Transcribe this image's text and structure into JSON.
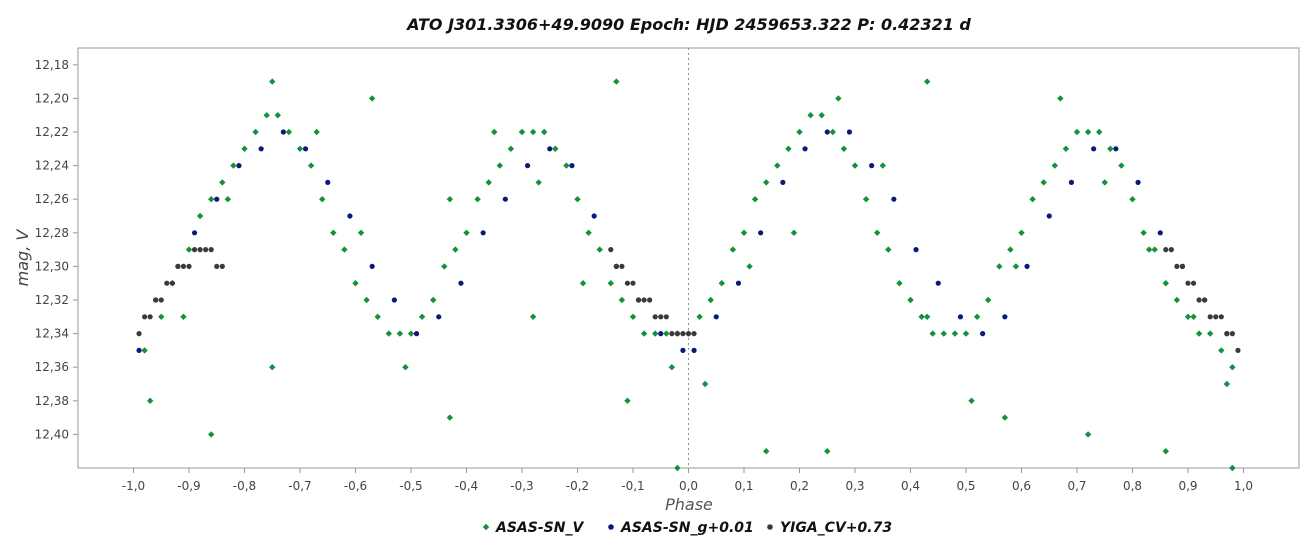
{
  "chart_data": {
    "type": "scatter",
    "title": "ATO J301.3306+49.9090   Epoch: HJD 2459653.322   P: 0.42321 d",
    "xlabel": "Phase",
    "ylabel": "mag, V",
    "xlim": [
      -1.1,
      1.1
    ],
    "ylim": [
      12.17,
      12.42
    ],
    "y_inverted": true,
    "reference_line_x": 0.0,
    "x_ticks": [
      "-1,0",
      "-0,9",
      "-0,8",
      "-0,7",
      "-0,6",
      "-0,5",
      "-0,4",
      "-0,3",
      "-0,2",
      "-0,1",
      "0,0",
      "0,1",
      "0,2",
      "0,3",
      "0,4",
      "0,5",
      "0,6",
      "0,7",
      "0,8",
      "0,9",
      "1,0"
    ],
    "x_tick_values": [
      -1.0,
      -0.9,
      -0.8,
      -0.7,
      -0.6,
      -0.5,
      -0.4,
      -0.3,
      -0.2,
      -0.1,
      0.0,
      0.1,
      0.2,
      0.3,
      0.4,
      0.5,
      0.6,
      0.7,
      0.8,
      0.9,
      1.0
    ],
    "y_ticks": [
      "12,18",
      "12,20",
      "12,22",
      "12,24",
      "12,26",
      "12,28",
      "12,30",
      "12,32",
      "12,34",
      "12,36",
      "12,38",
      "12,40"
    ],
    "y_tick_values": [
      12.18,
      12.2,
      12.22,
      12.24,
      12.26,
      12.28,
      12.3,
      12.32,
      12.34,
      12.36,
      12.38,
      12.4
    ],
    "grid": false,
    "legend_position": "bottom",
    "series": [
      {
        "name": "ASAS-SN_V",
        "color": "#14913d",
        "marker": "diamond",
        "x": [
          -0.98,
          -0.95,
          -0.93,
          -0.9,
          -0.88,
          -0.86,
          -0.84,
          -0.82,
          -0.8,
          -0.78,
          -0.76,
          -0.74,
          -0.72,
          -0.7,
          -0.68,
          -0.66,
          -0.64,
          -0.62,
          -0.6,
          -0.58,
          -0.56,
          -0.54,
          -0.52,
          -0.5,
          -0.48,
          -0.46,
          -0.44,
          -0.42,
          -0.4,
          -0.38,
          -0.36,
          -0.34,
          -0.32,
          -0.3,
          -0.28,
          -0.26,
          -0.24,
          -0.22,
          -0.2,
          -0.18,
          -0.16,
          -0.14,
          -0.12,
          -0.1,
          -0.08,
          -0.06,
          -0.04,
          -0.02,
          0.0,
          0.02,
          0.04,
          0.06,
          0.08,
          0.1,
          0.12,
          0.14,
          0.16,
          0.18,
          0.2,
          0.22,
          0.24,
          0.26,
          0.28,
          0.3,
          0.32,
          0.34,
          0.36,
          0.38,
          0.4,
          0.42,
          0.44,
          0.46,
          0.48,
          0.5,
          0.52,
          0.54,
          0.56,
          0.58,
          0.6,
          0.62,
          0.64,
          0.66,
          0.68,
          0.7,
          0.72,
          0.74,
          0.76,
          0.78,
          0.8,
          0.82,
          0.84,
          0.86,
          0.88,
          0.9,
          0.92,
          0.94,
          0.96,
          0.98,
          -0.97,
          -0.91,
          -0.83,
          -0.75,
          -0.67,
          -0.59,
          -0.51,
          -0.43,
          -0.35,
          -0.27,
          -0.19,
          -0.11,
          -0.03,
          0.03,
          0.11,
          0.19,
          0.27,
          0.35,
          0.43,
          0.51,
          0.59,
          0.67,
          0.75,
          0.83,
          0.91,
          0.97,
          -0.86,
          -0.75,
          -0.57,
          -0.43,
          -0.28,
          -0.13,
          -0.02,
          0.14,
          0.25,
          0.43,
          0.57,
          0.72,
          0.86,
          0.98
        ],
        "y": [
          12.35,
          12.33,
          12.31,
          12.29,
          12.27,
          12.26,
          12.25,
          12.24,
          12.23,
          12.22,
          12.21,
          12.21,
          12.22,
          12.23,
          12.24,
          12.26,
          12.28,
          12.29,
          12.31,
          12.32,
          12.33,
          12.34,
          12.34,
          12.34,
          12.33,
          12.32,
          12.3,
          12.29,
          12.28,
          12.26,
          12.25,
          12.24,
          12.23,
          12.22,
          12.22,
          12.22,
          12.23,
          12.24,
          12.26,
          12.28,
          12.29,
          12.31,
          12.32,
          12.33,
          12.34,
          12.34,
          12.34,
          12.34,
          12.34,
          12.33,
          12.32,
          12.31,
          12.29,
          12.28,
          12.26,
          12.25,
          12.24,
          12.23,
          12.22,
          12.21,
          12.21,
          12.22,
          12.23,
          12.24,
          12.26,
          12.28,
          12.29,
          12.31,
          12.32,
          12.33,
          12.34,
          12.34,
          12.34,
          12.34,
          12.33,
          12.32,
          12.3,
          12.29,
          12.28,
          12.26,
          12.25,
          12.24,
          12.23,
          12.22,
          12.22,
          12.22,
          12.23,
          12.24,
          12.26,
          12.28,
          12.29,
          12.31,
          12.32,
          12.33,
          12.34,
          12.34,
          12.35,
          12.36,
          12.38,
          12.33,
          12.26,
          12.19,
          12.22,
          12.28,
          12.36,
          12.26,
          12.22,
          12.25,
          12.31,
          12.38,
          12.36,
          12.37,
          12.3,
          12.28,
          12.2,
          12.24,
          12.33,
          12.38,
          12.3,
          12.2,
          12.25,
          12.29,
          12.33,
          12.37,
          12.4,
          12.36,
          12.2,
          12.39,
          12.33,
          12.19,
          12.42,
          12.41,
          12.41,
          12.19,
          12.39,
          12.4,
          12.41,
          12.42
        ]
      },
      {
        "name": "ASAS-SN_g+0.01",
        "color": "#0b1a78",
        "marker": "circle",
        "x": [
          -0.99,
          -0.96,
          -0.92,
          -0.89,
          -0.85,
          -0.81,
          -0.77,
          -0.73,
          -0.69,
          -0.65,
          -0.61,
          -0.57,
          -0.53,
          -0.49,
          -0.45,
          -0.41,
          -0.37,
          -0.33,
          -0.29,
          -0.25,
          -0.21,
          -0.17,
          -0.13,
          -0.09,
          -0.05,
          -0.01,
          0.01,
          0.05,
          0.09,
          0.13,
          0.17,
          0.21,
          0.25,
          0.29,
          0.33,
          0.37,
          0.41,
          0.45,
          0.49,
          0.53,
          0.57,
          0.61,
          0.65,
          0.69,
          0.73,
          0.77,
          0.81,
          0.85,
          0.89,
          0.93,
          0.97
        ],
        "y": [
          12.35,
          12.32,
          12.3,
          12.28,
          12.26,
          12.24,
          12.23,
          12.22,
          12.23,
          12.25,
          12.27,
          12.3,
          12.32,
          12.34,
          12.33,
          12.31,
          12.28,
          12.26,
          12.24,
          12.23,
          12.24,
          12.27,
          12.3,
          12.32,
          12.34,
          12.35,
          12.35,
          12.33,
          12.31,
          12.28,
          12.25,
          12.23,
          12.22,
          12.22,
          12.24,
          12.26,
          12.29,
          12.31,
          12.33,
          12.34,
          12.33,
          12.3,
          12.27,
          12.25,
          12.23,
          12.23,
          12.25,
          12.28,
          12.3,
          12.32,
          12.34
        ]
      },
      {
        "name": "YIGA_CV+0.73",
        "color": "#3a3a3a",
        "marker": "circle",
        "x": [
          -0.99,
          -0.98,
          -0.97,
          -0.96,
          -0.95,
          -0.94,
          -0.93,
          -0.92,
          -0.91,
          -0.9,
          -0.89,
          -0.88,
          -0.87,
          -0.86,
          -0.85,
          -0.84,
          -0.14,
          -0.13,
          -0.12,
          -0.11,
          -0.1,
          -0.09,
          -0.08,
          -0.07,
          -0.06,
          -0.05,
          -0.04,
          -0.03,
          -0.02,
          -0.01,
          0.0,
          0.01,
          0.86,
          0.87,
          0.88,
          0.89,
          0.9,
          0.91,
          0.92,
          0.93,
          0.94,
          0.95,
          0.96,
          0.97,
          0.98,
          0.99
        ],
        "y": [
          12.34,
          12.33,
          12.33,
          12.32,
          12.32,
          12.31,
          12.31,
          12.3,
          12.3,
          12.3,
          12.29,
          12.29,
          12.29,
          12.29,
          12.3,
          12.3,
          12.29,
          12.3,
          12.3,
          12.31,
          12.31,
          12.32,
          12.32,
          12.32,
          12.33,
          12.33,
          12.33,
          12.34,
          12.34,
          12.34,
          12.34,
          12.34,
          12.29,
          12.29,
          12.3,
          12.3,
          12.31,
          12.31,
          12.32,
          12.32,
          12.33,
          12.33,
          12.33,
          12.34,
          12.34,
          12.35
        ]
      }
    ]
  }
}
